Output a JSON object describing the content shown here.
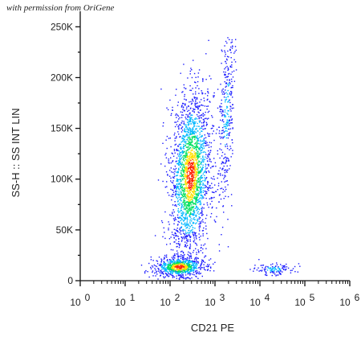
{
  "watermark": "with permission from OriGene",
  "chart_data": {
    "type": "scatter",
    "title": "",
    "xlabel": "CD21 PE",
    "ylabel": "SS-H :: SS INT LIN",
    "x_scale": "log",
    "x_decades": [
      0,
      1,
      2,
      3,
      4,
      5,
      6
    ],
    "xlim": [
      0,
      6
    ],
    "ylim": [
      0,
      262144
    ],
    "y_ticks": [
      {
        "value": 0,
        "label": "0"
      },
      {
        "value": 50000,
        "label": "50K"
      },
      {
        "value": 100000,
        "label": "100K"
      },
      {
        "value": 150000,
        "label": "150K"
      },
      {
        "value": 200000,
        "label": "200K"
      },
      {
        "value": 250000,
        "label": "250K"
      }
    ],
    "x_tick_base": "10",
    "color_scale": [
      "#1a1aff",
      "#00b7ff",
      "#00e060",
      "#ffe000",
      "#ff2000"
    ],
    "populations": [
      {
        "name": "",
        "x_center_log": 2.45,
        "x_spread_log": 0.22,
        "y_center": 105000,
        "y_spread": 40000,
        "count": 2200,
        "density": "high"
      },
      {
        "name": "",
        "x_center_log": 2.2,
        "x_spread_log": 0.28,
        "y_center": 14000,
        "y_spread": 5000,
        "count": 700,
        "density": "high"
      },
      {
        "name": "",
        "x_center_log": 3.25,
        "x_spread_log": 0.08,
        "y_center": 165000,
        "y_spread": 45000,
        "count": 350,
        "density": "low"
      },
      {
        "name": "",
        "x_center_log": 4.3,
        "x_spread_log": 0.25,
        "y_center": 12000,
        "y_spread": 3000,
        "count": 120,
        "density": "low"
      }
    ]
  }
}
